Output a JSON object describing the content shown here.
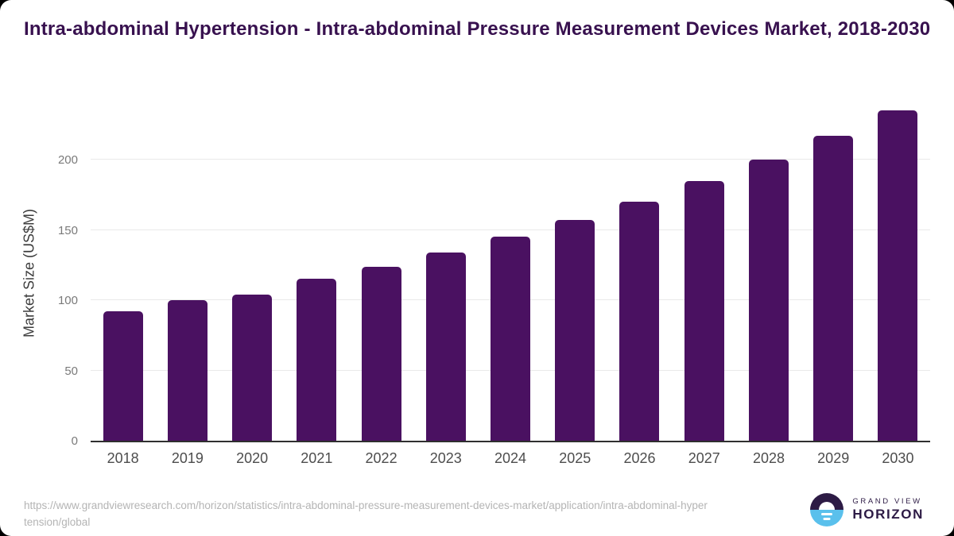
{
  "title": "Intra-abdominal Hypertension - Intra-abdominal Pressure Measurement Devices Market, 2018-2030",
  "chart_data": {
    "type": "bar",
    "title": "Intra-abdominal Hypertension - Intra-abdominal Pressure Measurement Devices Market, 2018-2030",
    "categories": [
      "2018",
      "2019",
      "2020",
      "2021",
      "2022",
      "2023",
      "2024",
      "2025",
      "2026",
      "2027",
      "2028",
      "2029",
      "2030"
    ],
    "values": [
      92,
      100,
      104,
      115,
      124,
      134,
      145,
      157,
      170,
      185,
      200,
      217,
      235
    ],
    "xlabel": "",
    "ylabel": "Market Size (US$M)",
    "ylim": [
      0,
      240
    ],
    "yticks": [
      0,
      50,
      100,
      150,
      200
    ],
    "grid": "horizontal-light",
    "legend": "none",
    "bar_color": "#4a1161"
  },
  "colors": {
    "title_text": "#38114f",
    "bar": "#4a1161",
    "gridline": "#e9e9e9",
    "axis_line": "#2f2f2f",
    "y_tick_text": "#7a7a7a",
    "x_tick_text": "#4d4d4d",
    "source_text": "#b4b4b4",
    "logo_purple": "#2d1b45",
    "logo_blue": "#5ac0ec"
  },
  "footer": {
    "source_url": "https://www.grandviewresearch.com/horizon/statistics/intra-abdominal-pressure-measurement-devices-market/application/intra-abdominal-hypertension/global",
    "logo": {
      "top": "GRAND VIEW",
      "bottom": "HORIZON"
    }
  }
}
